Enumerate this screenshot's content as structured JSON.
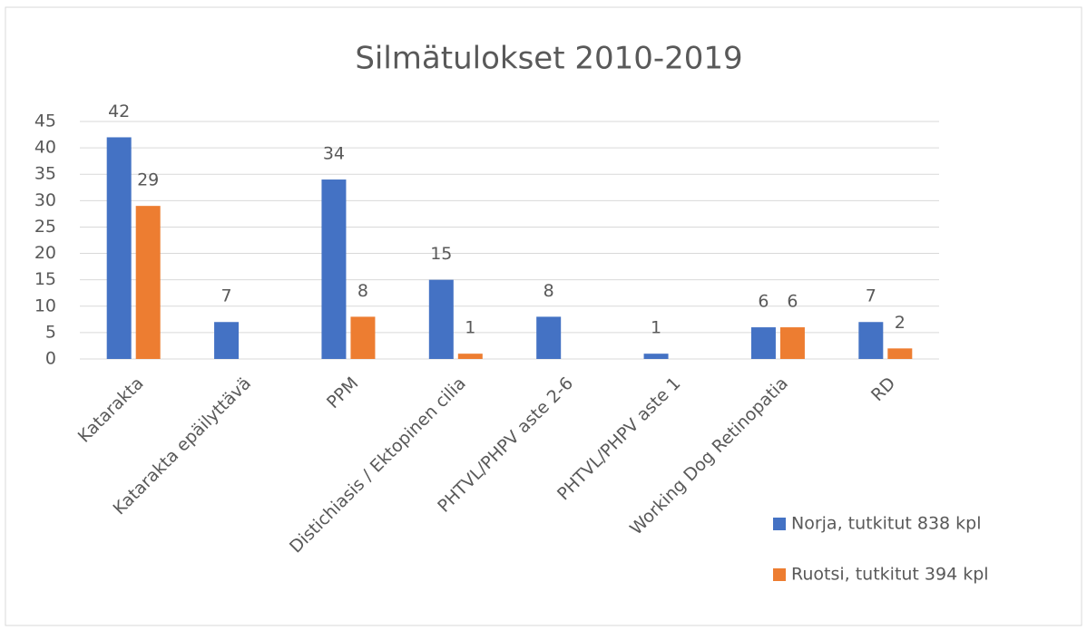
{
  "chart_data": {
    "type": "bar",
    "title": "Silmätulokset 2010-2019",
    "categories": [
      "Katarakta",
      "Katarakta epäilyttävä",
      "PPM",
      "Distichiasis / Ektopinen cilia",
      "PHTVL/PHPV aste 2-6",
      "PHTVL/PHPV aste 1",
      "Working Dog Retinopatia",
      "RD"
    ],
    "series": [
      {
        "name": "Norja, tutkitut 838 kpl",
        "color": "#4472c4",
        "values": [
          42,
          7,
          34,
          15,
          8,
          1,
          6,
          7
        ]
      },
      {
        "name": "Ruotsi, tutkitut 394 kpl",
        "color": "#ed7d31",
        "values": [
          29,
          null,
          8,
          1,
          null,
          null,
          6,
          2
        ]
      }
    ],
    "ylim": [
      0,
      45
    ],
    "yticks": [
      0,
      5,
      10,
      15,
      20,
      25,
      30,
      35,
      40,
      45
    ],
    "grid": true,
    "legend": "bottom-right"
  }
}
